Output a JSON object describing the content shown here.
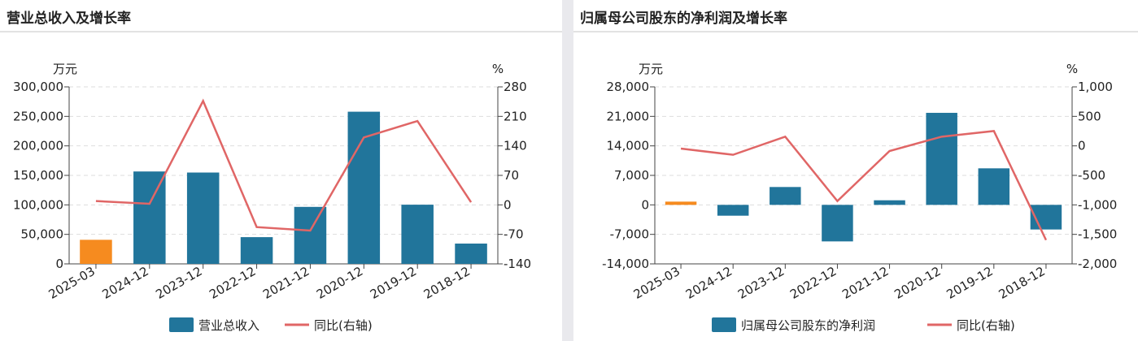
{
  "panels": [
    {
      "title": "营业总收入及增长率"
    },
    {
      "title": "归属母公司股东的净利润及增长率"
    }
  ],
  "chart_data": [
    {
      "type": "bar+line",
      "title": "营业总收入及增长率",
      "left_unit": "万元",
      "right_unit": "%",
      "categories": [
        "2025-03",
        "2024-12",
        "2023-12",
        "2022-12",
        "2021-12",
        "2020-12",
        "2019-12",
        "2018-12"
      ],
      "left_ticks": [
        "300,000",
        "250,000",
        "200,000",
        "150,000",
        "100,000",
        "50,000",
        "0"
      ],
      "right_ticks": [
        "280",
        "210",
        "140",
        "70",
        "0",
        "-70",
        "-140"
      ],
      "ylim_left": [
        0,
        300000
      ],
      "ylim_right": [
        -140,
        280
      ],
      "bars": {
        "name": "营业总收入",
        "values": [
          40800,
          156600,
          154800,
          45300,
          96600,
          257900,
          100300,
          34400
        ],
        "color": "#21759b",
        "highlight_color": "#f68b1f"
      },
      "line": {
        "name": "同比(右轴)",
        "values": [
          9,
          2.6,
          246.6,
          -52.7,
          -61,
          160,
          199,
          6.4
        ],
        "color": "#e06666"
      },
      "grid": true,
      "legend": "bottom"
    },
    {
      "type": "bar+line",
      "title": "归属母公司股东的净利润及增长率",
      "left_unit": "万元",
      "right_unit": "%",
      "categories": [
        "2025-03",
        "2024-12",
        "2023-12",
        "2022-12",
        "2021-12",
        "2020-12",
        "2019-12",
        "2018-12"
      ],
      "left_ticks": [
        "28,000",
        "21,000",
        "14,000",
        "7,000",
        "0",
        "-7,000",
        "-14,000"
      ],
      "right_ticks": [
        "1,000",
        "500",
        "0",
        "-500",
        "-1,000",
        "-1,500",
        "-2,000"
      ],
      "ylim_left": [
        -14000,
        28000
      ],
      "ylim_right": [
        -2000,
        1000
      ],
      "bars": {
        "name": "归属母公司股东的净利润",
        "values": [
          770,
          -2570,
          4240,
          -8670,
          1090,
          21840,
          8670,
          -5840
        ],
        "color": "#21759b",
        "highlight_color": "#f68b1f"
      },
      "line": {
        "name": "同比(右轴)",
        "values": [
          -46,
          -151,
          156,
          -936,
          -87,
          156,
          252,
          -1596
        ],
        "color": "#e06666"
      },
      "grid": true,
      "legend": "bottom"
    }
  ]
}
